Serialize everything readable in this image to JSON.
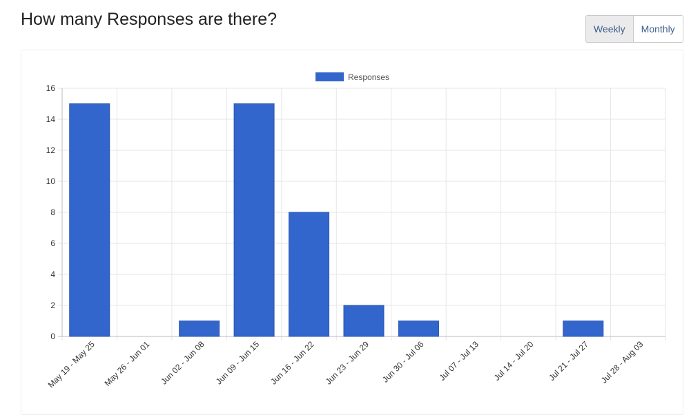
{
  "header": {
    "title": "How many Responses are there?",
    "toggle": {
      "weekly_label": "Weekly",
      "monthly_label": "Monthly",
      "selected": "Weekly"
    }
  },
  "colors": {
    "bar": "#3366cc",
    "grid": "#e6e6e6",
    "axis": "#bbbbbb",
    "text": "#333333"
  },
  "chart_data": {
    "type": "bar",
    "categories": [
      "May 19 - May 25",
      "May 26 - Jun 01",
      "Jun 02 - Jun 08",
      "Jun 09 - Jun 15",
      "Jun 16 - Jun 22",
      "Jun 23 - Jun 29",
      "Jun 30 - Jul 06",
      "Jul 07 - Jul 13",
      "Jul 14 - Jul 20",
      "Jul 21 - Jul 27",
      "Jul 28 - Aug 03"
    ],
    "series": [
      {
        "name": "Responses",
        "values": [
          15,
          0,
          1,
          15,
          8,
          2,
          1,
          0,
          0,
          1,
          0
        ]
      }
    ],
    "yticks": [
      "0",
      "2",
      "4",
      "6",
      "8",
      "10",
      "12",
      "14",
      "16"
    ],
    "ylim": [
      0,
      16
    ],
    "grid": true,
    "legend_position": "top-center"
  }
}
